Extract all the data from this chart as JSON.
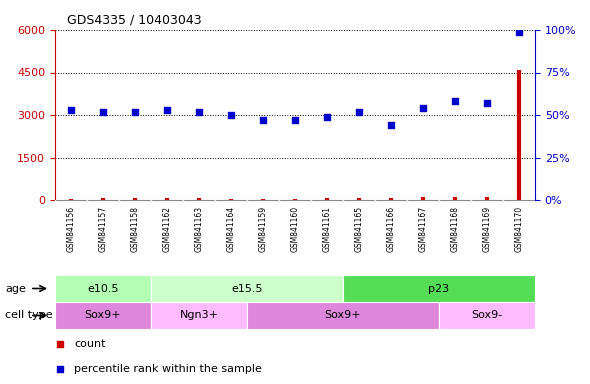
{
  "title": "GDS4335 / 10403043",
  "samples": [
    "GSM841156",
    "GSM841157",
    "GSM841158",
    "GSM841162",
    "GSM841163",
    "GSM841164",
    "GSM841159",
    "GSM841160",
    "GSM841161",
    "GSM841165",
    "GSM841166",
    "GSM841167",
    "GSM841168",
    "GSM841169",
    "GSM841170"
  ],
  "count_values": [
    50,
    80,
    60,
    70,
    55,
    45,
    50,
    40,
    55,
    65,
    70,
    100,
    90,
    110,
    4600
  ],
  "percentile_values": [
    53,
    52,
    52,
    53,
    52,
    50,
    47,
    47,
    49,
    52,
    44,
    54,
    58,
    57,
    99
  ],
  "ylim_left": [
    0,
    6000
  ],
  "ylim_right": [
    0,
    100
  ],
  "yticks_left": [
    0,
    1500,
    3000,
    4500,
    6000
  ],
  "yticks_right": [
    0,
    25,
    50,
    75,
    100
  ],
  "age_groups": [
    {
      "label": "e10.5",
      "start": 0,
      "end": 3,
      "color": "#b3ffb3"
    },
    {
      "label": "e15.5",
      "start": 3,
      "end": 9,
      "color": "#ccffcc"
    },
    {
      "label": "p23",
      "start": 9,
      "end": 15,
      "color": "#55dd55"
    }
  ],
  "cell_type_groups": [
    {
      "label": "Sox9+",
      "start": 0,
      "end": 3,
      "color": "#dd88dd"
    },
    {
      "label": "Ngn3+",
      "start": 3,
      "end": 6,
      "color": "#ffbbff"
    },
    {
      "label": "Sox9+",
      "start": 6,
      "end": 12,
      "color": "#dd88dd"
    },
    {
      "label": "Sox9-",
      "start": 12,
      "end": 15,
      "color": "#ffbbff"
    }
  ],
  "count_color": "#cc0000",
  "percentile_color": "#0000cc",
  "left_axis_color": "#cc0000",
  "right_axis_color": "#0000cc",
  "grid_color": "#000000",
  "bg_color": "#ffffff",
  "label_age": "age",
  "label_cell_type": "cell type",
  "legend_count": "count",
  "legend_percentile": "percentile rank within the sample",
  "sample_bg_color": "#cccccc",
  "sample_sep_color": "#ffffff"
}
